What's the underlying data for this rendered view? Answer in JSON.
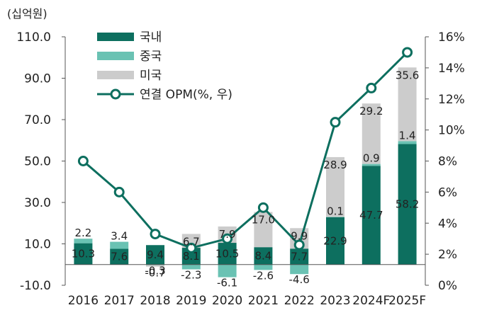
{
  "unit_label": "(십억원)",
  "colors": {
    "domestic": "#0d6f5f",
    "china": "#6ac2b3",
    "us": "#cccccc",
    "opm_line": "#0d6f5f",
    "marker_fill": "#ffffff",
    "axis": "#555555"
  },
  "chart_data": {
    "type": "bar",
    "stacked": true,
    "categories": [
      "2016",
      "2017",
      "2018",
      "2019",
      "2020",
      "2021",
      "2022",
      "2023",
      "2024F",
      "2025F"
    ],
    "series": [
      {
        "name": "국내",
        "values": [
          10.3,
          7.6,
          9.4,
          8.1,
          10.5,
          8.4,
          7.7,
          22.9,
          47.7,
          58.2
        ],
        "labels": [
          "10.3",
          "7.6",
          "9.4",
          "8.1",
          "10.5",
          "8.4",
          "7.7",
          "22.9",
          "47.7",
          "58.2"
        ]
      },
      {
        "name": "중국",
        "values": [
          2.2,
          3.4,
          -0.3,
          -2.3,
          -6.1,
          -2.6,
          -4.6,
          0.1,
          0.9,
          1.4
        ],
        "labels": [
          "2.2",
          "3.4",
          "-0.3",
          "-2.3",
          "-6.1",
          "-2.6",
          "-4.6",
          "0.1",
          "0.9",
          "1.4"
        ]
      },
      {
        "name": "미국",
        "values": [
          0,
          0,
          -0.7,
          6.7,
          7.9,
          17.0,
          9.9,
          28.9,
          29.2,
          35.6
        ],
        "labels": [
          "",
          "",
          "-0.7",
          "6.7",
          "7.9",
          "17.0",
          "9.9",
          "28.9",
          "29.2",
          "35.6"
        ]
      }
    ],
    "line_series": {
      "name": "연결 OPM(%, 우)",
      "values": [
        8.0,
        6.0,
        3.3,
        2.4,
        3.0,
        5.0,
        2.6,
        10.5,
        12.7,
        15.0
      ]
    },
    "y_left": {
      "min": -10,
      "max": 110,
      "ticks": [
        "-10.0",
        "10.0",
        "30.0",
        "50.0",
        "70.0",
        "90.0",
        "110.0"
      ]
    },
    "y_right": {
      "min": 0,
      "max": 16,
      "ticks": [
        "0%",
        "2%",
        "4%",
        "6%",
        "8%",
        "10%",
        "12%",
        "14%",
        "16%"
      ]
    },
    "legend_position": "top-left",
    "grid": false
  }
}
